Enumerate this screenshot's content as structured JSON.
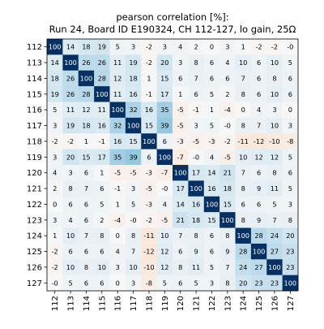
{
  "chart_data": {
    "type": "heatmap",
    "title": "pearson correlation [%]:",
    "subtitle": "Run 24, Board ID E190324, CH 112-127, lo gain, 25Ω",
    "xlabel": "",
    "ylabel": "",
    "categories": [
      "112",
      "113",
      "114",
      "115",
      "116",
      "117",
      "118",
      "119",
      "120",
      "121",
      "122",
      "123",
      "124",
      "125",
      "126",
      "127"
    ],
    "row_labels": [
      "112",
      "113",
      "114",
      "115",
      "116",
      "117",
      "118",
      "119",
      "120",
      "121",
      "122",
      "123",
      "124",
      "125",
      "126",
      "127"
    ],
    "colormap": "RdBu",
    "vmin": -100,
    "vmax": 100,
    "grid": false,
    "legend": "none",
    "values": [
      [
        100,
        14,
        18,
        19,
        5,
        3,
        -2,
        3,
        4,
        2,
        0,
        3,
        1,
        -2,
        -2,
        0
      ],
      [
        14,
        100,
        26,
        26,
        11,
        19,
        -2,
        20,
        3,
        8,
        6,
        4,
        10,
        6,
        10,
        5
      ],
      [
        18,
        26,
        100,
        28,
        12,
        18,
        1,
        15,
        6,
        7,
        6,
        6,
        7,
        6,
        8,
        6
      ],
      [
        19,
        26,
        28,
        100,
        11,
        16,
        -1,
        17,
        1,
        6,
        5,
        2,
        8,
        6,
        10,
        6
      ],
      [
        5,
        11,
        12,
        11,
        100,
        32,
        16,
        35,
        -5,
        -1,
        1,
        -4,
        0,
        4,
        3,
        0
      ],
      [
        3,
        19,
        18,
        16,
        32,
        100,
        15,
        39,
        -5,
        3,
        5,
        0,
        8,
        7,
        10,
        3
      ],
      [
        -2,
        -2,
        1,
        -1,
        16,
        15,
        100,
        6,
        -3,
        -5,
        -3,
        -2,
        -11,
        -12,
        -10,
        -8
      ],
      [
        3,
        20,
        15,
        17,
        35,
        39,
        6,
        100,
        -7,
        0,
        4,
        -5,
        10,
        12,
        12,
        5
      ],
      [
        4,
        3,
        6,
        1,
        -5,
        -5,
        -3,
        -7,
        100,
        17,
        14,
        21,
        7,
        6,
        8,
        6
      ],
      [
        2,
        8,
        7,
        6,
        -1,
        3,
        -5,
        0,
        17,
        100,
        16,
        18,
        8,
        9,
        11,
        5
      ],
      [
        0,
        6,
        6,
        5,
        1,
        5,
        -3,
        4,
        14,
        16,
        100,
        15,
        6,
        6,
        5,
        3
      ],
      [
        3,
        4,
        6,
        2,
        -4,
        0,
        -2,
        -5,
        21,
        18,
        15,
        100,
        8,
        9,
        7,
        8
      ],
      [
        1,
        10,
        7,
        8,
        0,
        8,
        -11,
        10,
        7,
        8,
        6,
        8,
        100,
        28,
        24,
        20
      ],
      [
        -2,
        6,
        6,
        6,
        4,
        7,
        -12,
        12,
        6,
        9,
        6,
        9,
        28,
        100,
        27,
        23
      ],
      [
        -2,
        10,
        8,
        10,
        3,
        10,
        -10,
        12,
        8,
        11,
        5,
        7,
        24,
        27,
        100,
        23
      ],
      [
        0,
        5,
        6,
        6,
        0,
        3,
        -8,
        5,
        6,
        5,
        3,
        8,
        20,
        23,
        23,
        100
      ]
    ]
  }
}
